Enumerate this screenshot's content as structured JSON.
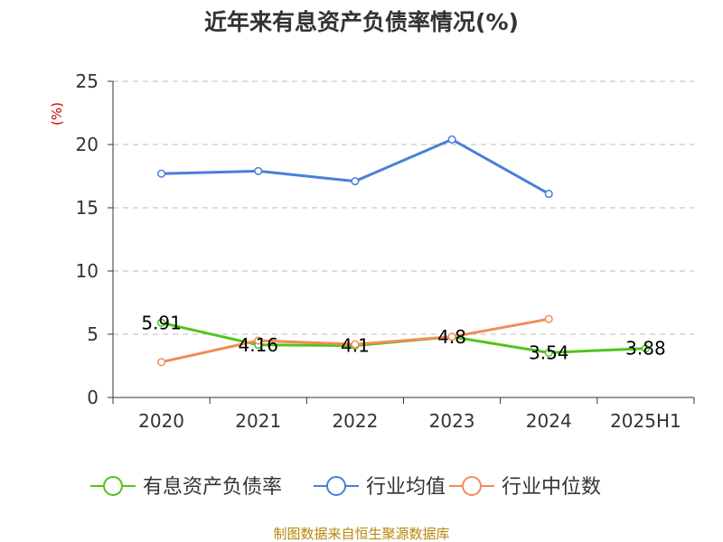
{
  "chart_data": {
    "type": "line",
    "title": "近年来有息资产负债率情况(%)",
    "ylabel": "(%)",
    "xlabel": "",
    "categories": [
      "2020",
      "2021",
      "2022",
      "2023",
      "2024",
      "2025H1"
    ],
    "ylim": [
      0,
      25
    ],
    "yticks": [
      0,
      5,
      10,
      15,
      20,
      25
    ],
    "grid": true,
    "legend_position": "bottom",
    "series": [
      {
        "name": "有息资产负债率",
        "color": "#52c41a",
        "values": [
          5.91,
          4.16,
          4.1,
          4.8,
          3.54,
          3.88
        ],
        "labels": [
          "5.91",
          "4.16",
          "4.1",
          "4.8",
          "3.54",
          "3.88"
        ]
      },
      {
        "name": "行业均值",
        "color": "#4a7fd8",
        "values": [
          17.7,
          17.9,
          17.1,
          20.4,
          16.1,
          null
        ]
      },
      {
        "name": "行业中位数",
        "color": "#f08c5a",
        "values": [
          2.8,
          4.5,
          4.2,
          4.8,
          6.2,
          null
        ]
      }
    ]
  },
  "source": "制图数据来自恒生聚源数据库"
}
